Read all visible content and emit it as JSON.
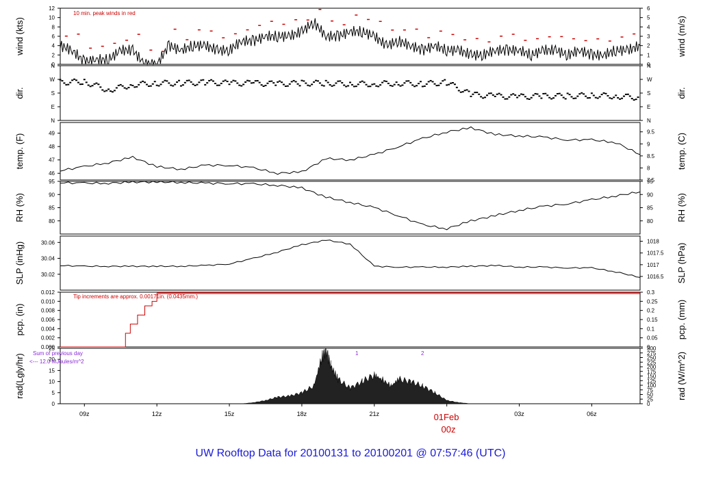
{
  "title": "UW Rooftop Data for 20100131  to  20100201 @ 07:57:46  (UTC)",
  "colors": {
    "title": "#1a1ad8",
    "annotation": "#cc0000",
    "purple": "#8a2ad8",
    "line": "#000000",
    "rad_fill": "#222222"
  },
  "x_axis": {
    "ticks": [
      "09z",
      "12z",
      "15z",
      "18z",
      "21z",
      "03z",
      "06z"
    ],
    "tick_hours": [
      9,
      12,
      15,
      18,
      21,
      27,
      30
    ],
    "date_label": "01Feb",
    "date_hour_label": "00z",
    "range_hours": [
      8,
      32
    ]
  },
  "annotations": {
    "wind": "10 min. peak winds in red",
    "pcp": "Tip increments are approx. 0.00171in. (0.0435mm.)",
    "rad_line1": "Sum of previous day",
    "rad_line2": "<--- 12.0 MJoules/m^2",
    "rad_marker1": "1",
    "rad_marker2": "2"
  },
  "chart_data": [
    {
      "panel": "wind",
      "type": "line",
      "ylabel_left": "wind (kts)",
      "ylabel_right": "wind (m/s)",
      "ylim": [
        0,
        12
      ],
      "yticks_left": [
        "0",
        "2",
        "4",
        "6",
        "8",
        "10",
        "12"
      ],
      "yticks_right": [
        "0",
        "1",
        "2",
        "3",
        "4",
        "5",
        "6"
      ],
      "x": [
        8,
        8.5,
        9,
        9.5,
        10,
        10.5,
        11,
        11.5,
        12,
        12.5,
        13,
        13.5,
        14,
        14.5,
        15,
        15.5,
        16,
        16.5,
        17,
        17.5,
        18,
        18.5,
        19,
        19.5,
        20,
        20.5,
        21,
        21.5,
        22,
        22.5,
        23,
        23.5,
        24,
        24.5,
        25,
        25.5,
        26,
        26.5,
        27,
        27.5,
        28,
        28.5,
        29,
        29.5,
        30,
        30.5,
        31,
        31.5,
        32
      ],
      "values": [
        4,
        3,
        0.5,
        1,
        1,
        3,
        3,
        0,
        0,
        4,
        3,
        4,
        4,
        3,
        3,
        5,
        5,
        6,
        6,
        6,
        7,
        9,
        6,
        6,
        7,
        7,
        6,
        4,
        5,
        4,
        3,
        4,
        3,
        3,
        2,
        2,
        3,
        3,
        3,
        2,
        3,
        3,
        2,
        3,
        2,
        2,
        3,
        3,
        4
      ],
      "peak_label": "10 min. peak winds"
    },
    {
      "panel": "dir",
      "type": "scatter",
      "ylabel_left": "dir.",
      "ylabel_right": "dir.",
      "yticks": [
        "N",
        "E",
        "S",
        "W",
        "N"
      ],
      "ylim": [
        0,
        360
      ],
      "x": [
        8,
        9,
        10,
        11,
        12,
        13,
        14,
        15,
        16,
        17,
        18,
        19,
        20,
        21,
        22,
        23,
        24,
        25,
        26,
        27,
        28,
        29,
        30,
        31,
        32
      ],
      "values": [
        250,
        255,
        200,
        235,
        245,
        245,
        250,
        245,
        245,
        240,
        245,
        245,
        240,
        240,
        245,
        240,
        250,
        170,
        160,
        155,
        160,
        160,
        165,
        160,
        150
      ]
    },
    {
      "panel": "temp",
      "type": "line",
      "ylabel_left": "temp. (F)",
      "ylabel_right": "temp. (C)",
      "ylim": [
        45.5,
        49.8
      ],
      "yticks_left": [
        "46",
        "47",
        "48",
        "49"
      ],
      "yticks_right": [
        "7.5",
        "8",
        "8.5",
        "9",
        "9.5"
      ],
      "x": [
        8,
        9,
        10,
        11,
        12,
        13,
        14,
        15,
        16,
        17,
        18,
        19,
        20,
        21,
        22,
        23,
        24,
        25,
        26,
        27,
        28,
        29,
        30,
        31,
        32
      ],
      "values": [
        46.2,
        46.5,
        46.8,
        47.2,
        46.5,
        46.3,
        46.6,
        46.6,
        46.4,
        46.0,
        46.1,
        47.1,
        47.0,
        47.4,
        48.0,
        48.6,
        49.1,
        49.4,
        48.9,
        48.8,
        48.7,
        48.5,
        48.5,
        48.3,
        47.4
      ]
    },
    {
      "panel": "rh",
      "type": "line",
      "ylabel_left": "RH (%)",
      "ylabel_right": "RH (%)",
      "ylim": [
        75,
        95
      ],
      "yticks_left": [
        "80",
        "85",
        "90",
        "95"
      ],
      "yticks_right": [
        "80",
        "85",
        "90",
        "95"
      ],
      "x": [
        8,
        9,
        10,
        11,
        12,
        13,
        14,
        15,
        16,
        17,
        18,
        19,
        20,
        21,
        22,
        23,
        24,
        25,
        26,
        27,
        28,
        29,
        30,
        31,
        32
      ],
      "values": [
        94.5,
        94.3,
        94.3,
        94.7,
        94.8,
        94.6,
        94.3,
        94.2,
        94.0,
        93.5,
        92.5,
        89,
        87,
        85,
        82,
        78.5,
        77,
        80,
        82,
        84,
        85.5,
        86.5,
        88,
        89.5,
        91
      ]
    },
    {
      "panel": "slp",
      "type": "line",
      "ylabel_left": "SLP (inHg)",
      "ylabel_right": "SLP (hPa)",
      "ylim": [
        30.0,
        30.068
      ],
      "yticks_left": [
        "30.02",
        "30.04",
        "30.06"
      ],
      "yticks_left_all": [
        "30",
        "30.02",
        "30.04",
        "30.06"
      ],
      "yticks_right": [
        "1016.5",
        "1017",
        "1017.5",
        "1018"
      ],
      "x": [
        8,
        9,
        10,
        11,
        12,
        13,
        14,
        15,
        16,
        17,
        18,
        19,
        20,
        21,
        22,
        23,
        24,
        25,
        26,
        27,
        28,
        29,
        30,
        31,
        32
      ],
      "values": [
        30.031,
        30.03,
        30.03,
        30.03,
        30.03,
        30.03,
        30.031,
        30.033,
        30.04,
        30.048,
        30.057,
        30.063,
        30.058,
        30.03,
        30.029,
        30.029,
        30.029,
        30.03,
        30.031,
        30.029,
        30.029,
        30.028,
        30.028,
        30.023,
        30.016
      ]
    },
    {
      "panel": "pcp",
      "type": "line",
      "ylabel_left": "pcp. (in)",
      "ylabel_right": "pcp. (mm)",
      "ylim": [
        0,
        0.012
      ],
      "yticks_left": [
        "0.000",
        "0.002",
        "0.004",
        "0.006",
        "0.008",
        "0.010",
        "0.012"
      ],
      "yticks_right": [
        "0",
        "0.05",
        "0.1",
        "0.15",
        "0.2",
        "0.25",
        "0.3"
      ],
      "x": [
        8,
        10.5,
        10.7,
        10.9,
        11.2,
        11.5,
        11.8,
        12,
        32
      ],
      "values": [
        0,
        0,
        0.003,
        0.005,
        0.007,
        0.009,
        0.01,
        0.0117,
        0.0117
      ]
    },
    {
      "panel": "rad",
      "type": "area",
      "ylabel_left": "rad(Lgly/hr)",
      "ylabel_right": "rad (W/m^2)",
      "ylim": [
        0,
        25
      ],
      "yticks_left": [
        "0",
        "5",
        "10",
        "15",
        "20",
        "25"
      ],
      "yticks_right": [
        "0",
        "25",
        "50",
        "75",
        "100",
        "125",
        "150",
        "175",
        "200",
        "225",
        "250",
        "275",
        "300"
      ],
      "x": [
        15.5,
        16,
        16.5,
        17,
        17.5,
        18,
        18.5,
        18.8,
        19,
        19.2,
        19.5,
        20,
        20.5,
        21,
        21.3,
        21.7,
        22,
        22.5,
        23,
        23.5,
        24,
        24.5,
        25
      ],
      "values": [
        0,
        0.5,
        1.5,
        3,
        3.5,
        5,
        8,
        20,
        25,
        17,
        11,
        7,
        10,
        13,
        11,
        8,
        11,
        10,
        8,
        5,
        1.5,
        0.5,
        0
      ]
    }
  ]
}
